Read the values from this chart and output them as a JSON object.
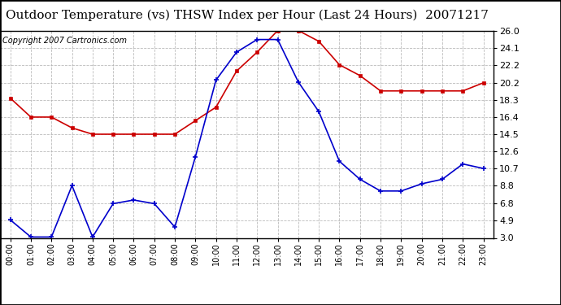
{
  "title": "Outdoor Temperature (vs) THSW Index per Hour (Last 24 Hours)  20071217",
  "copyright": "Copyright 2007 Cartronics.com",
  "hours": [
    "00:00",
    "01:00",
    "02:00",
    "03:00",
    "04:00",
    "05:00",
    "06:00",
    "07:00",
    "08:00",
    "09:00",
    "10:00",
    "11:00",
    "12:00",
    "13:00",
    "14:00",
    "15:00",
    "16:00",
    "17:00",
    "18:00",
    "19:00",
    "20:00",
    "21:00",
    "22:00",
    "23:00"
  ],
  "temp_blue": [
    5.0,
    3.1,
    3.1,
    8.8,
    3.1,
    6.8,
    7.2,
    6.8,
    4.2,
    12.0,
    20.5,
    23.6,
    25.0,
    25.0,
    20.3,
    17.0,
    11.5,
    9.5,
    8.2,
    8.2,
    9.0,
    9.5,
    11.2,
    10.7
  ],
  "thsw_red": [
    18.5,
    16.4,
    16.4,
    15.2,
    14.5,
    14.5,
    14.5,
    14.5,
    14.5,
    16.0,
    17.5,
    21.5,
    23.6,
    26.0,
    26.0,
    24.8,
    22.2,
    21.0,
    19.3,
    19.3,
    19.3,
    19.3,
    19.3,
    20.2
  ],
  "y_ticks": [
    3.0,
    4.9,
    6.8,
    8.8,
    10.7,
    12.6,
    14.5,
    16.4,
    18.3,
    20.2,
    22.2,
    24.1,
    26.0
  ],
  "ymin": 3.0,
  "ymax": 26.0,
  "blue_color": "#0000cc",
  "red_color": "#cc0000",
  "bg_color": "#ffffff",
  "grid_color": "#aaaaaa",
  "title_fontsize": 11,
  "copyright_fontsize": 7
}
